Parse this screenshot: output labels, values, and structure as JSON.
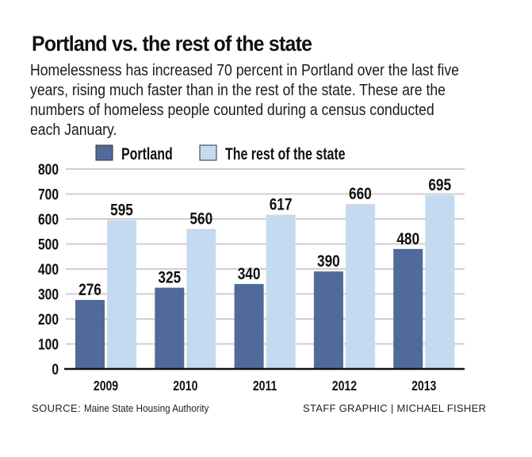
{
  "title": "Portland vs. the rest of the state",
  "subtitle": "Homelessness has increased 70 percent in Portland over the last five years, rising much faster than in the rest of the state. These are the numbers of homeless people counted during a census conducted each January.",
  "footer": {
    "source_label": "SOURCE:",
    "source_value": "Maine State Housing Authority",
    "credit": "STAFF GRAPHIC | MICHAEL FISHER"
  },
  "colors": {
    "portland": "#4f6a9b",
    "rest": "#c4daf0",
    "grid": "#cfcfcf",
    "axis": "#111111"
  },
  "chart_data": {
    "type": "bar",
    "title": "Portland vs. the rest of the state",
    "xlabel": "",
    "ylabel": "",
    "categories": [
      "2009",
      "2010",
      "2011",
      "2012",
      "2013"
    ],
    "series": [
      {
        "name": "Portland",
        "values": [
          276,
          325,
          340,
          390,
          480
        ]
      },
      {
        "name": "The rest of the state",
        "values": [
          595,
          560,
          617,
          660,
          695
        ]
      }
    ],
    "ylim": [
      0,
      800
    ],
    "yticks": [
      0,
      100,
      200,
      300,
      400,
      500,
      600,
      700,
      800
    ],
    "grid": true,
    "legend": "top",
    "data_labels": true
  }
}
